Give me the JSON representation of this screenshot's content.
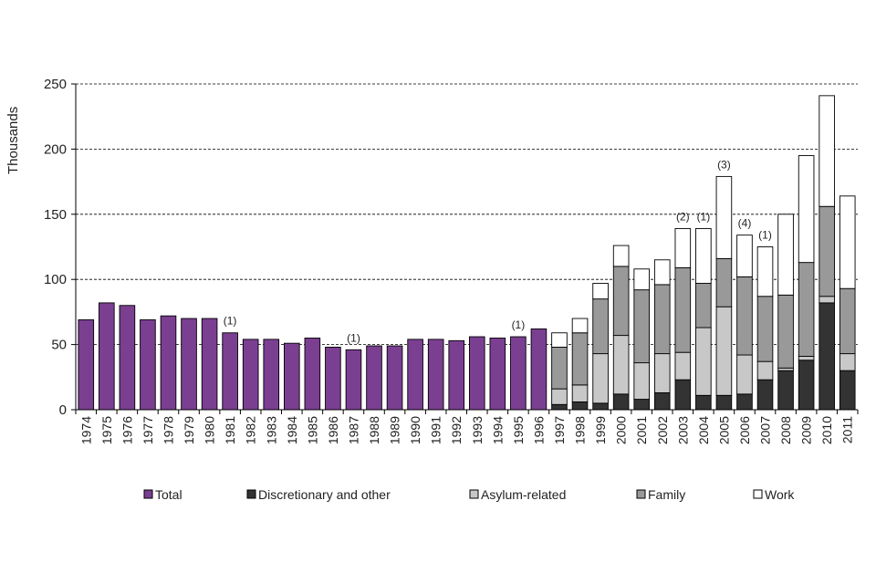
{
  "chart_data": {
    "type": "bar",
    "stacked_from": "1997",
    "title": "",
    "ylabel": "Thousands",
    "xlabel": "",
    "ylim": [
      0,
      250
    ],
    "yticks": [
      0,
      50,
      100,
      150,
      200,
      250
    ],
    "grid": true,
    "legend_position": "bottom",
    "categories": [
      "1974",
      "1975",
      "1976",
      "1977",
      "1978",
      "1979",
      "1980",
      "1981",
      "1982",
      "1983",
      "1984",
      "1985",
      "1986",
      "1987",
      "1988",
      "1989",
      "1990",
      "1991",
      "1992",
      "1993",
      "1994",
      "1995",
      "1996",
      "1997",
      "1998",
      "1999",
      "2000",
      "2001",
      "2002",
      "2003",
      "2004",
      "2005",
      "2006",
      "2007",
      "2008",
      "2009",
      "2010",
      "2011"
    ],
    "series": [
      {
        "name": "Total",
        "color": "#7b3f91",
        "values": [
          69,
          82,
          80,
          69,
          72,
          70,
          70,
          59,
          54,
          54,
          51,
          55,
          48,
          46,
          49,
          49,
          54,
          54,
          53,
          56,
          55,
          56,
          62,
          null,
          null,
          null,
          null,
          null,
          null,
          null,
          null,
          null,
          null,
          null,
          null,
          null,
          null,
          null
        ]
      },
      {
        "name": "Discretionary and other",
        "color": "#333333",
        "values": [
          null,
          null,
          null,
          null,
          null,
          null,
          null,
          null,
          null,
          null,
          null,
          null,
          null,
          null,
          null,
          null,
          null,
          null,
          null,
          null,
          null,
          null,
          null,
          4,
          6,
          5,
          12,
          8,
          13,
          23,
          11,
          11,
          12,
          23,
          30,
          38,
          82,
          30
        ]
      },
      {
        "name": "Asylum-related",
        "color": "#c8c8c8",
        "values": [
          null,
          null,
          null,
          null,
          null,
          null,
          null,
          null,
          null,
          null,
          null,
          null,
          null,
          null,
          null,
          null,
          null,
          null,
          null,
          null,
          null,
          null,
          null,
          12,
          13,
          38,
          45,
          28,
          30,
          21,
          52,
          68,
          30,
          14,
          2,
          3,
          5,
          13
        ]
      },
      {
        "name": "Family",
        "color": "#999999",
        "values": [
          null,
          null,
          null,
          null,
          null,
          null,
          null,
          null,
          null,
          null,
          null,
          null,
          null,
          null,
          null,
          null,
          null,
          null,
          null,
          null,
          null,
          null,
          null,
          32,
          40,
          42,
          53,
          56,
          53,
          65,
          34,
          37,
          60,
          50,
          56,
          72,
          69,
          50
        ]
      },
      {
        "name": "Work",
        "color": "#ffffff",
        "values": [
          null,
          null,
          null,
          null,
          null,
          null,
          null,
          null,
          null,
          null,
          null,
          null,
          null,
          null,
          null,
          null,
          null,
          null,
          null,
          null,
          null,
          null,
          null,
          11,
          11,
          12,
          16,
          16,
          19,
          30,
          42,
          63,
          32,
          38,
          62,
          82,
          85,
          71
        ]
      }
    ],
    "annotations": [
      {
        "category": "1981",
        "label": "(1)"
      },
      {
        "category": "1987",
        "label": "(1)"
      },
      {
        "category": "1995",
        "label": "(1)"
      },
      {
        "category": "2003",
        "label": "(2)"
      },
      {
        "category": "2004",
        "label": "(1)"
      },
      {
        "category": "2005",
        "label": "(3)"
      },
      {
        "category": "2006",
        "label": "(4)"
      },
      {
        "category": "2007",
        "label": "(1)"
      }
    ]
  }
}
